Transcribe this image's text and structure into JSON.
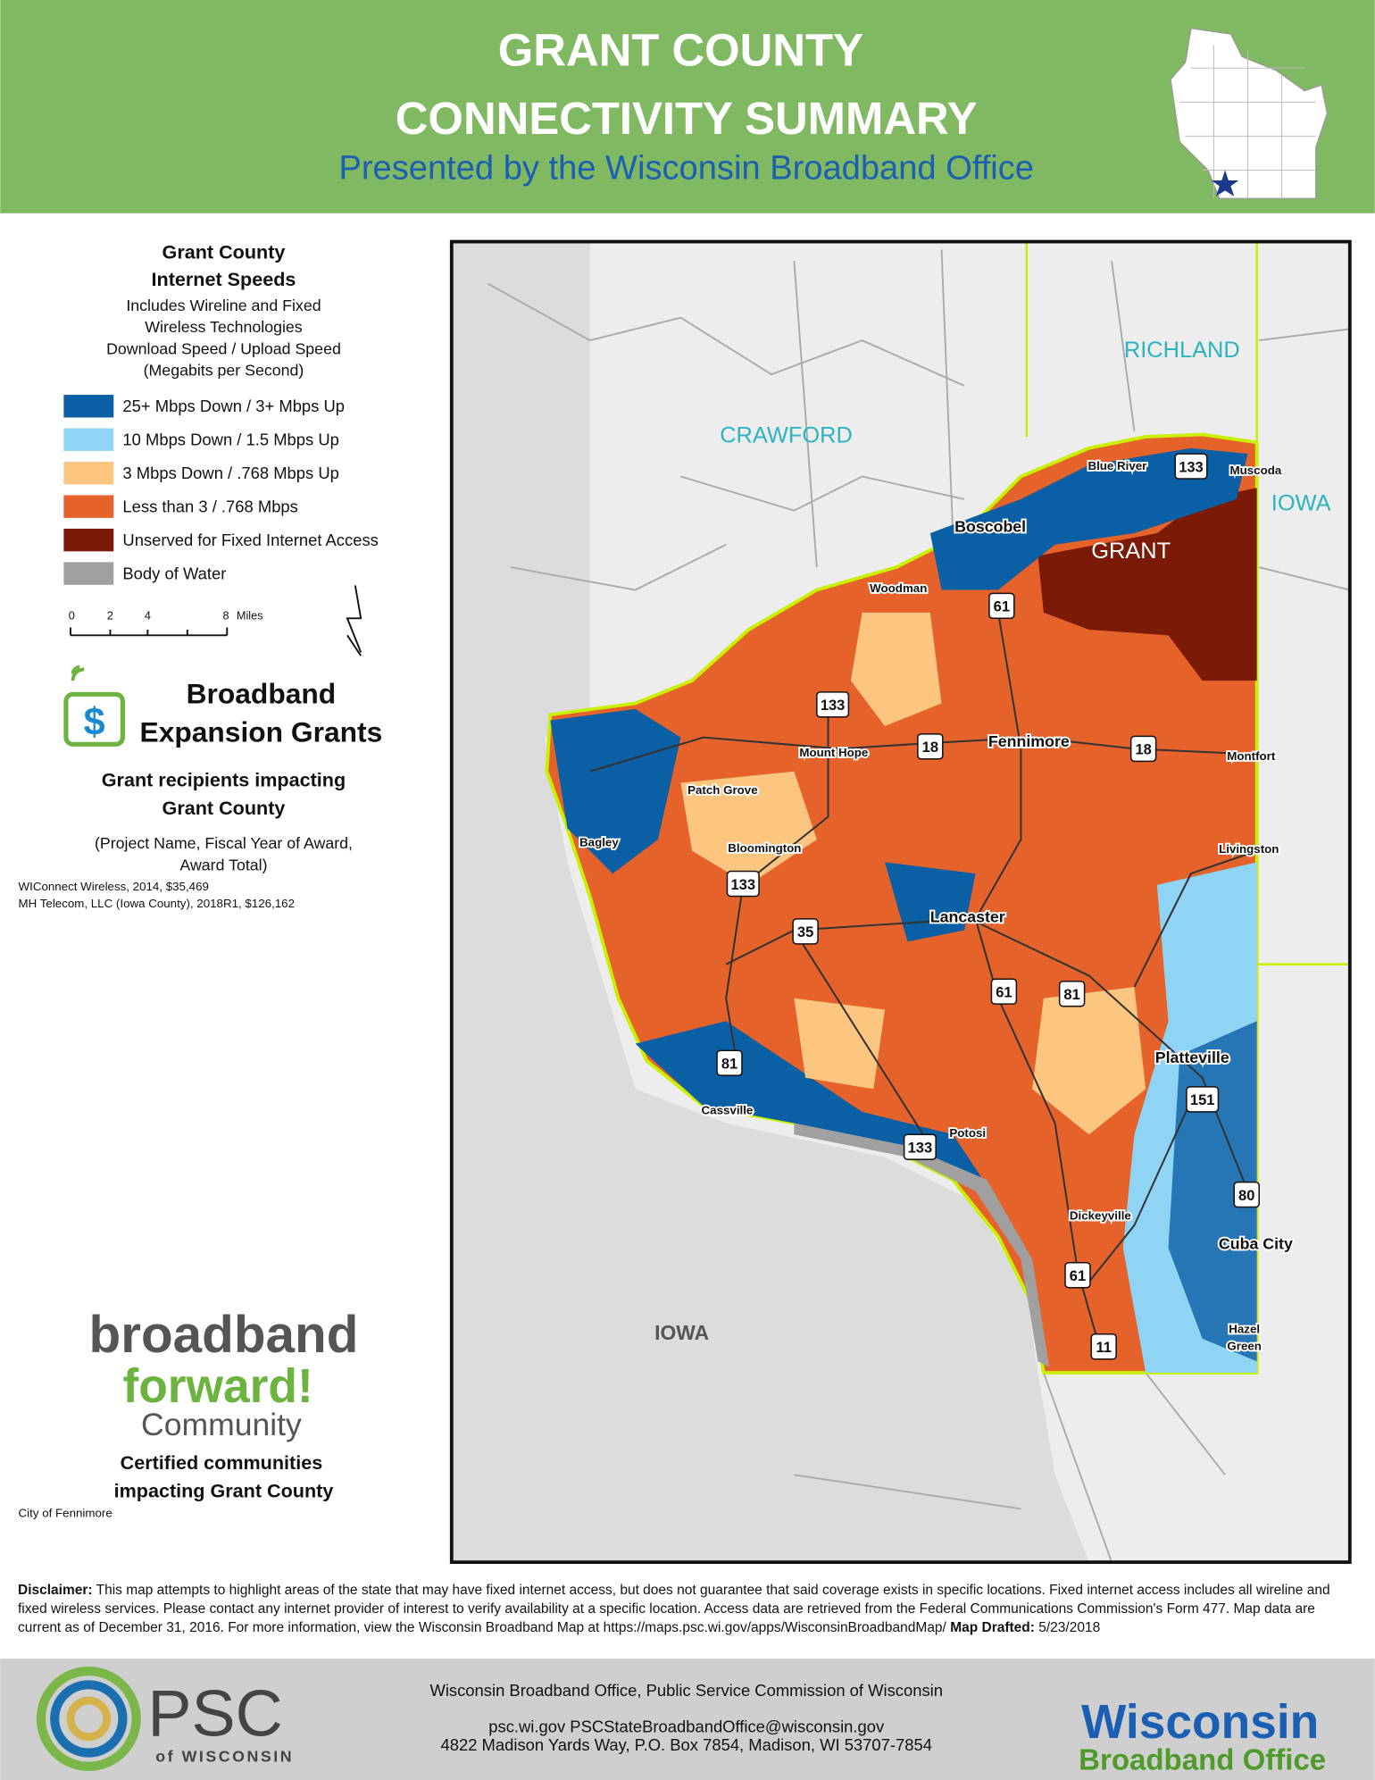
{
  "header": {
    "title_lines": [
      "GRANT COUNTY",
      "CONNECTIVITY SUMMARY"
    ],
    "subtitle": "Presented by the Wisconsin Broadband Office"
  },
  "legend": {
    "title_lines": [
      "Grant County",
      "Internet Speeds"
    ],
    "note_lines": [
      "Includes Wireline and Fixed",
      "Wireless Technologies",
      "Download Speed / Upload Speed",
      "(Megabits per Second)"
    ],
    "items": [
      {
        "label": "25+ Mbps Down / 3+ Mbps Up",
        "color": "#0b5fa5"
      },
      {
        "label": "10 Mbps Down / 1.5 Mbps Up",
        "color": "#8fd3f5"
      },
      {
        "label": "3 Mbps Down / .768 Mbps Up",
        "color": "#fdc680"
      },
      {
        "label": "Less than 3  / .768 Mbps",
        "color": "#e6622b"
      },
      {
        "label": "Unserved for Fixed Internet Access",
        "color": "#7b1a07"
      },
      {
        "label": "Body of Water",
        "color": "#a0a0a0"
      }
    ],
    "scale_labels": [
      "0",
      "2",
      "4",
      "8",
      "Miles"
    ]
  },
  "grants": {
    "logo_lines": [
      "Broadband",
      "Expansion Grants"
    ],
    "heading_lines": [
      "Grant recipients impacting",
      "Grant County"
    ],
    "note_lines": [
      "(Project Name, Fiscal Year of Award,",
      "Award Total)"
    ],
    "recipients": [
      "WIConnect Wireless, 2014, $35,469",
      "MH Telecom, LLC (Iowa County), 2018R1, $126,162"
    ]
  },
  "forward": {
    "logo_lines": [
      "broadband",
      "forward!",
      "Community"
    ],
    "heading_lines": [
      "Certified communities",
      "impacting Grant County"
    ],
    "communities": [
      "City of Fennimore"
    ]
  },
  "map": {
    "counties": [
      "CRAWFORD",
      "RICHLAND",
      "IOWA",
      "GRANT",
      "IOWA"
    ],
    "cities": [
      "Blue River",
      "Muscoda",
      "Boscobel",
      "Woodman",
      "Mount Hope",
      "Fennimore",
      "Montfort",
      "Patch Grove",
      "Bagley",
      "Bloomington",
      "Livingston",
      "Lancaster",
      "Platteville",
      "Cassville",
      "Potosi",
      "Dickeyville",
      "Cuba City",
      "Hazel",
      "Green"
    ],
    "highways": [
      "133",
      "61",
      "133",
      "18",
      "18",
      "133",
      "35",
      "61",
      "81",
      "81",
      "151",
      "133",
      "80",
      "61",
      "11"
    ]
  },
  "disclaimer": {
    "label": "Disclaimer:",
    "text": "This map attempts to highlight areas of the state that may have fixed internet access, but does not guarantee that said coverage exists in specific locations. Fixed internet access includes all wireline and fixed wireless services. Please contact any internet provider of interest to verify availability at a specific location. Access data are retrieved from the Federal Communications Commission's Form 477. Map data are current as of December 31, 2016. For more information, view the Wisconsin Broadband Map at https://maps.psc.wi.gov/apps/WisconsinBroadbandMap/",
    "drafted_label": "Map Drafted:",
    "drafted_date": "5/23/2018"
  },
  "footer": {
    "psc_lines": [
      "PSC",
      "of WISCONSIN"
    ],
    "office": "Wisconsin Broadband Office, Public Service Commission of Wisconsin",
    "contact": "psc.wi.gov   PSCStateBroadbandOffice@wisconsin.gov",
    "address": "4822 Madison Yards Way, P.O. Box 7854, Madison, WI 53707-7854",
    "wbo_lines": [
      "Wisconsin",
      "Broadband Office"
    ]
  }
}
